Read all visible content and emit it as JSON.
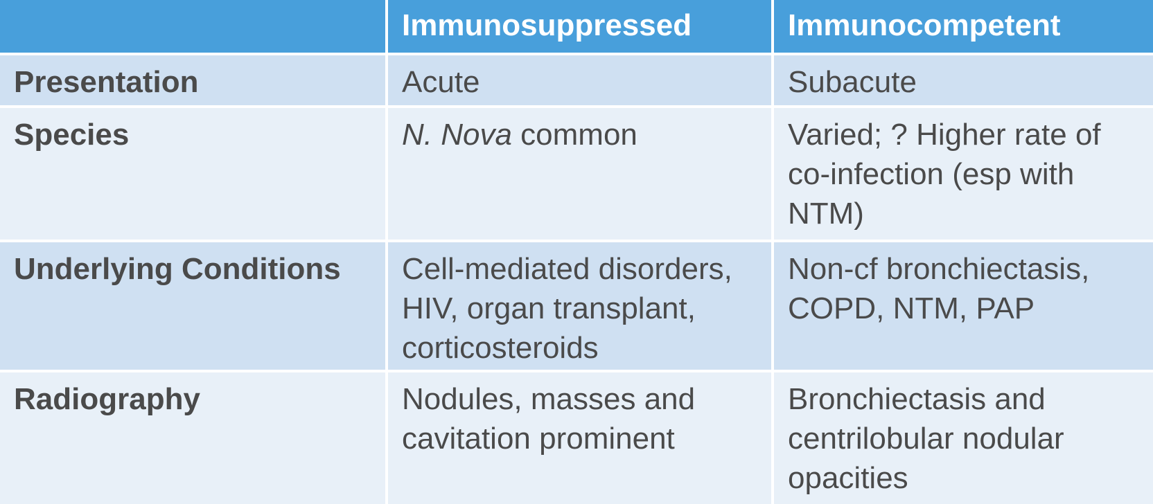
{
  "header": {
    "col0": "",
    "col1": "Immunosuppressed",
    "col2": "Immunocompetent"
  },
  "rows": [
    {
      "label": "Presentation",
      "immunosuppressed": "Acute",
      "immunocompetent": "Subacute"
    },
    {
      "label": "Species",
      "immunosuppressed_italic": "N. Nova",
      "immunosuppressed_rest": " common",
      "immunocompetent": "Varied; ? Higher rate of co-infection (esp with NTM)"
    },
    {
      "label": "Underlying Conditions",
      "immunosuppressed": "Cell-mediated disorders, HIV, organ transplant, corticosteroids",
      "immunocompetent": "Non-cf bronchiectasis, COPD, NTM, PAP"
    },
    {
      "label": "Radiography",
      "immunosuppressed": "Nodules, masses and cavitation prominent",
      "immunocompetent": "Bronchiectasis and centrilobular nodular opacities"
    }
  ],
  "colors": {
    "header_bg": "#489fdb",
    "row_dark_bg": "#cfe0f2",
    "row_light_bg": "#e8f0f8",
    "text": "#4a4a4a"
  }
}
